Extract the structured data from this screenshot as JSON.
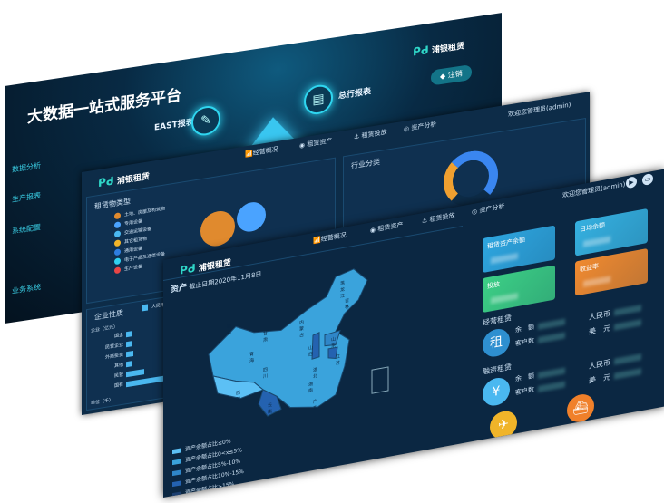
{
  "back": {
    "title": "大数据一站式服务平台",
    "logo": "浦银租赁",
    "logout": "注销",
    "east": "EAST报表",
    "head_office": "总行报表",
    "sidebar": [
      "数据分析",
      "生产报表",
      "系统配置",
      "业务系统"
    ]
  },
  "middle": {
    "logo": "浦银租赁",
    "user": "欢迎您管理员(admin)",
    "nav": [
      "经营概况",
      "租赁资产",
      "租赁投放",
      "资产分析"
    ],
    "lease_type": {
      "title": "租赁物类型",
      "items": [
        {
          "label": "土地、房屋及构筑物",
          "color": "#e08a2e"
        },
        {
          "label": "专用设备",
          "color": "#4aa3ff"
        },
        {
          "label": "交通运输设备",
          "color": "#4ab8f0"
        },
        {
          "label": "其它租赁物",
          "color": "#f0b429"
        },
        {
          "label": "通用设备",
          "color": "#2e7de0"
        },
        {
          "label": "电子产品及通信设备",
          "color": "#30d0f0"
        },
        {
          "label": "生产设备",
          "color": "#e84545"
        }
      ]
    },
    "industry": {
      "title": "行业分类"
    },
    "enterprise": {
      "title": "企业性质",
      "legend": "人民币",
      "ylabel": "企业（亿元）",
      "xlabel": "单位（千）",
      "categories": [
        "国企",
        "民营企业",
        "外商投资",
        "其他",
        "民营",
        "国有"
      ],
      "ticks": [
        "0",
        "50",
        "100"
      ]
    }
  },
  "front": {
    "logo": "浦银租赁",
    "user": "欢迎您管理员(admin)",
    "nav": [
      "经营概况",
      "租赁资产",
      "租赁投放",
      "资产分析"
    ],
    "map": {
      "title": "资产",
      "date": "截止日期2020年11月8日",
      "provinces": [
        "新疆",
        "西藏",
        "青海",
        "四川",
        "云南",
        "内蒙古",
        "黑龙江",
        "吉林",
        "甘肃",
        "山西",
        "山东",
        "江苏",
        "湖北",
        "湖南",
        "广东"
      ],
      "legend": [
        {
          "label": "资产余额占比≤0%",
          "color": "#5cc0f5"
        },
        {
          "label": "资产余额占比0<x≤5%",
          "color": "#3aa3dc"
        },
        {
          "label": "资产余额占比5%-10%",
          "color": "#2f86c8"
        },
        {
          "label": "资产余额占比10%-15%",
          "color": "#2462b0"
        },
        {
          "label": "资产余额占比>15%",
          "color": "#1c3f70"
        }
      ]
    },
    "cards": [
      {
        "label": "租赁资产余额",
        "color": "#2ea6e0"
      },
      {
        "label": "日均余额",
        "color": "#35b0e0"
      },
      {
        "label": "投放",
        "color": "#3ccf86"
      },
      {
        "label": "收益率",
        "color": "#f08a30"
      }
    ],
    "operating": {
      "title": "经营租赁",
      "balance": "余　额",
      "customers": "客户数",
      "rmb": "人民币",
      "usd": "美　元",
      "icon_text": "租"
    },
    "finance": {
      "title": "融资租赁",
      "balance": "余　额",
      "customers": "客户数",
      "rmb": "人民币",
      "usd": "美　元",
      "icon_text": "¥"
    }
  }
}
